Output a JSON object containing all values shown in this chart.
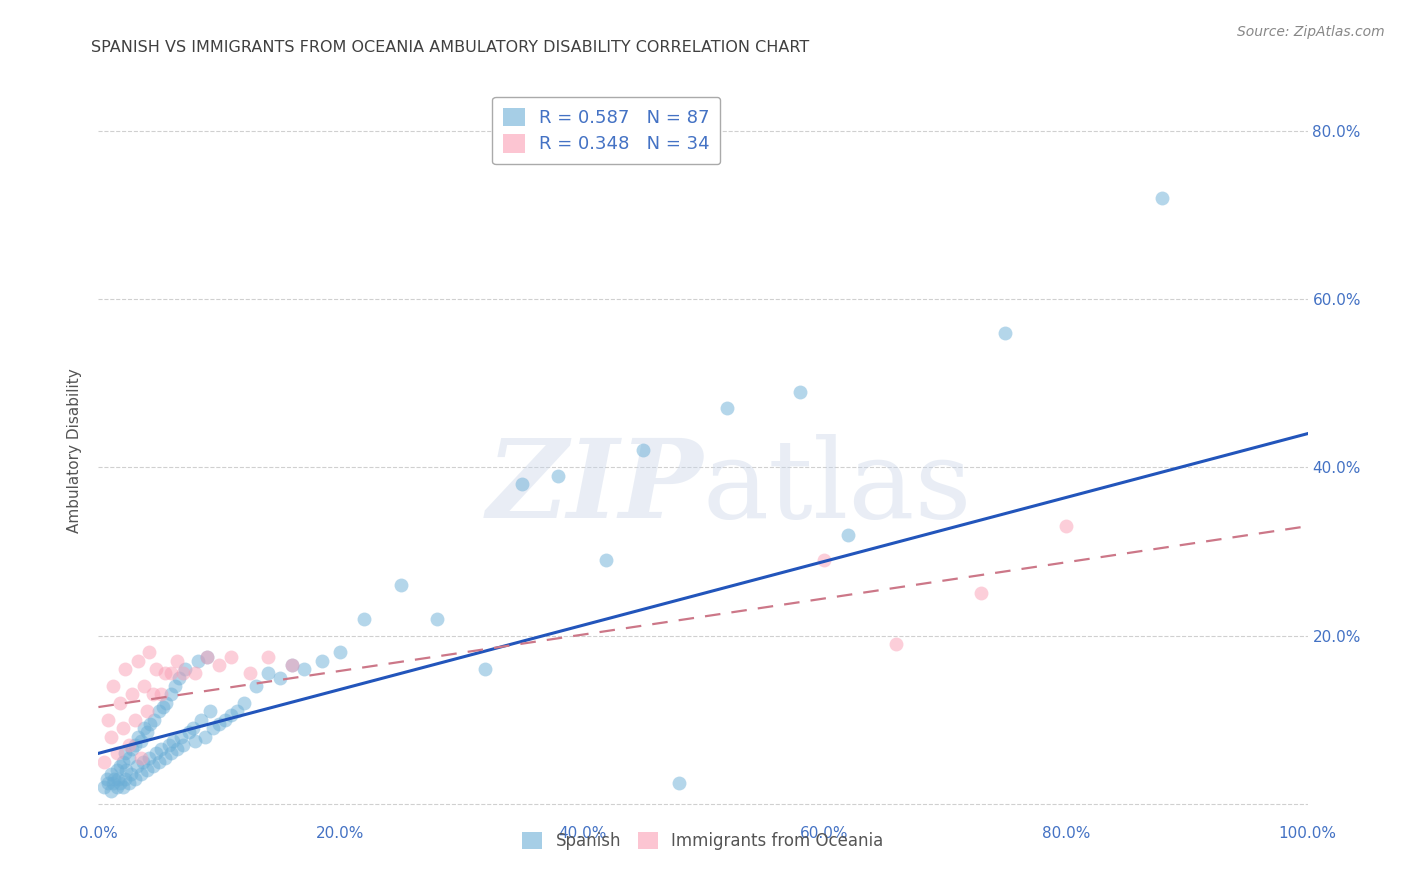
{
  "title": "SPANISH VS IMMIGRANTS FROM OCEANIA AMBULATORY DISABILITY CORRELATION CHART",
  "source": "Source: ZipAtlas.com",
  "ylabel": "Ambulatory Disability",
  "x_min": 0.0,
  "x_max": 1.0,
  "y_min": -0.02,
  "y_max": 0.86,
  "x_ticks": [
    0.0,
    0.2,
    0.4,
    0.6,
    0.8,
    1.0
  ],
  "x_tick_labels": [
    "0.0%",
    "20.0%",
    "40.0%",
    "60.0%",
    "80.0%",
    "100.0%"
  ],
  "y_ticks": [
    0.0,
    0.2,
    0.4,
    0.6,
    0.8
  ],
  "y_tick_labels": [
    "",
    "20.0%",
    "40.0%",
    "60.0%",
    "80.0%"
  ],
  "spanish_color": "#6baed6",
  "oceania_color": "#fa9fb5",
  "spanish_R": 0.587,
  "spanish_N": 87,
  "oceania_R": 0.348,
  "oceania_N": 34,
  "spanish_scatter_x": [
    0.005,
    0.007,
    0.008,
    0.01,
    0.01,
    0.012,
    0.013,
    0.015,
    0.015,
    0.016,
    0.018,
    0.018,
    0.02,
    0.02,
    0.022,
    0.022,
    0.023,
    0.025,
    0.025,
    0.027,
    0.028,
    0.03,
    0.03,
    0.032,
    0.033,
    0.035,
    0.035,
    0.037,
    0.038,
    0.04,
    0.04,
    0.042,
    0.043,
    0.045,
    0.046,
    0.048,
    0.05,
    0.05,
    0.052,
    0.053,
    0.055,
    0.056,
    0.058,
    0.06,
    0.06,
    0.062,
    0.063,
    0.065,
    0.067,
    0.068,
    0.07,
    0.072,
    0.075,
    0.078,
    0.08,
    0.082,
    0.085,
    0.088,
    0.09,
    0.092,
    0.095,
    0.1,
    0.105,
    0.11,
    0.115,
    0.12,
    0.13,
    0.14,
    0.15,
    0.16,
    0.17,
    0.185,
    0.2,
    0.22,
    0.25,
    0.28,
    0.32,
    0.35,
    0.38,
    0.42,
    0.45,
    0.48,
    0.52,
    0.58,
    0.62,
    0.75,
    0.88
  ],
  "spanish_scatter_y": [
    0.02,
    0.03,
    0.025,
    0.015,
    0.035,
    0.025,
    0.03,
    0.02,
    0.04,
    0.03,
    0.025,
    0.045,
    0.02,
    0.05,
    0.03,
    0.06,
    0.04,
    0.025,
    0.055,
    0.035,
    0.065,
    0.03,
    0.07,
    0.045,
    0.08,
    0.035,
    0.075,
    0.05,
    0.09,
    0.04,
    0.085,
    0.055,
    0.095,
    0.045,
    0.1,
    0.06,
    0.05,
    0.11,
    0.065,
    0.115,
    0.055,
    0.12,
    0.07,
    0.06,
    0.13,
    0.075,
    0.14,
    0.065,
    0.15,
    0.08,
    0.07,
    0.16,
    0.085,
    0.09,
    0.075,
    0.17,
    0.1,
    0.08,
    0.175,
    0.11,
    0.09,
    0.095,
    0.1,
    0.105,
    0.11,
    0.12,
    0.14,
    0.155,
    0.15,
    0.165,
    0.16,
    0.17,
    0.18,
    0.22,
    0.26,
    0.22,
    0.16,
    0.38,
    0.39,
    0.29,
    0.42,
    0.025,
    0.47,
    0.49,
    0.32,
    0.56,
    0.72
  ],
  "oceania_scatter_x": [
    0.005,
    0.008,
    0.01,
    0.012,
    0.015,
    0.018,
    0.02,
    0.022,
    0.025,
    0.028,
    0.03,
    0.033,
    0.035,
    0.038,
    0.04,
    0.042,
    0.045,
    0.048,
    0.052,
    0.055,
    0.06,
    0.065,
    0.07,
    0.08,
    0.09,
    0.1,
    0.11,
    0.125,
    0.14,
    0.16,
    0.6,
    0.66,
    0.73,
    0.8
  ],
  "oceania_scatter_y": [
    0.05,
    0.1,
    0.08,
    0.14,
    0.06,
    0.12,
    0.09,
    0.16,
    0.07,
    0.13,
    0.1,
    0.17,
    0.055,
    0.14,
    0.11,
    0.18,
    0.13,
    0.16,
    0.13,
    0.155,
    0.155,
    0.17,
    0.155,
    0.155,
    0.175,
    0.165,
    0.175,
    0.155,
    0.175,
    0.165,
    0.29,
    0.19,
    0.25,
    0.33
  ],
  "spanish_line_start_x": 0.0,
  "spanish_line_start_y": 0.06,
  "spanish_line_end_x": 1.0,
  "spanish_line_end_y": 0.44,
  "oceania_line_start_x": 0.0,
  "oceania_line_start_y": 0.115,
  "oceania_line_end_x": 1.0,
  "oceania_line_end_y": 0.33,
  "watermark_part1": "ZIP",
  "watermark_part2": "atlas",
  "background_color": "#ffffff",
  "grid_color": "#d0d0d0",
  "tick_color": "#4472c4",
  "title_color": "#404040",
  "line_blue": "#2255bb",
  "line_pink": "#cc7788"
}
